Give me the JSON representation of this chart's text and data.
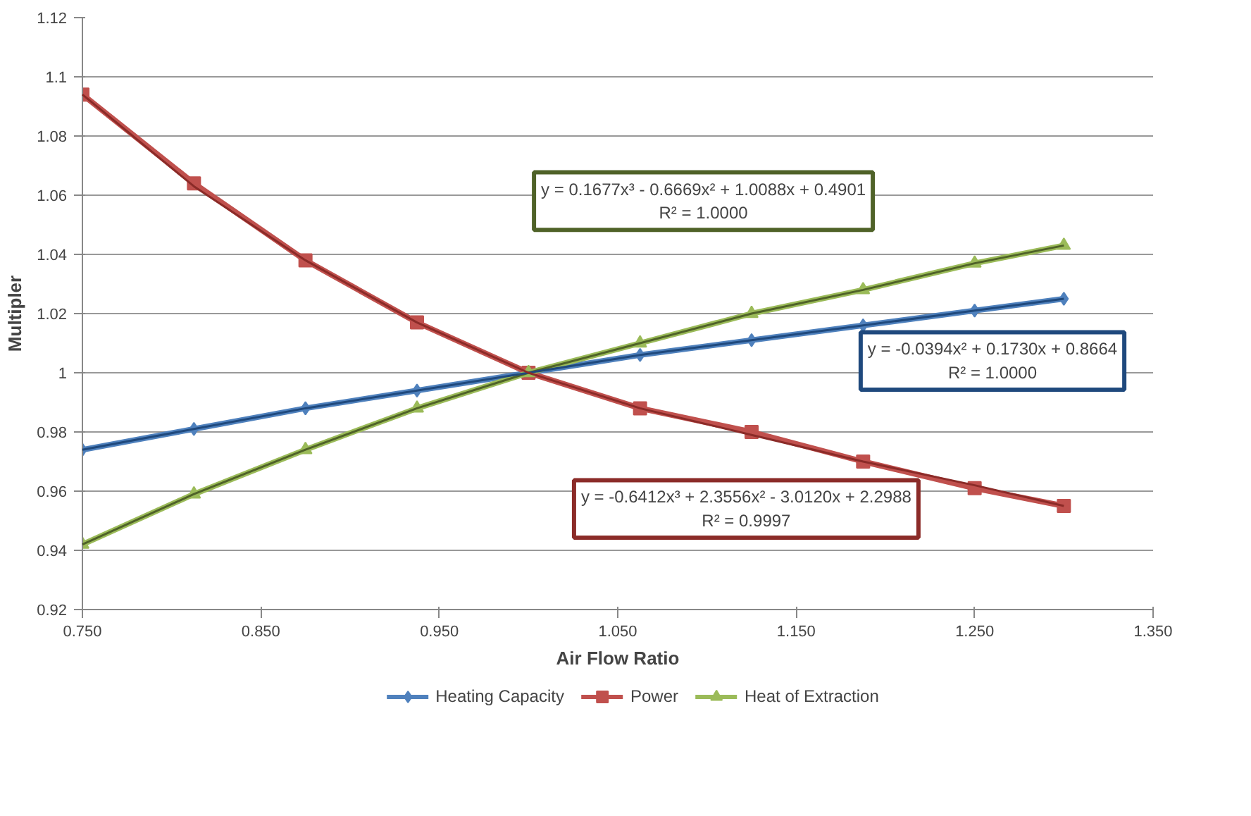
{
  "chart_data": {
    "type": "line",
    "xlabel": "Air Flow Ratio",
    "ylabel": "Multipler",
    "x": [
      0.75,
      0.8125,
      0.875,
      0.9375,
      1.0,
      1.0625,
      1.125,
      1.1875,
      1.25,
      1.3
    ],
    "series": [
      {
        "name": "Heating Capacity",
        "color": "#4f81bd",
        "marker": "diamond",
        "values": [
          0.974,
          0.981,
          0.988,
          0.994,
          1.0,
          1.006,
          1.011,
          1.016,
          1.021,
          1.025
        ]
      },
      {
        "name": "Power",
        "color": "#c0504d",
        "marker": "square",
        "values": [
          1.094,
          1.064,
          1.038,
          1.017,
          1.0,
          0.988,
          0.98,
          0.97,
          0.961,
          0.955
        ]
      },
      {
        "name": "Heat of Extraction",
        "color": "#9bbb59",
        "marker": "triangle",
        "values": [
          0.942,
          0.959,
          0.974,
          0.988,
          1.0,
          1.01,
          1.02,
          1.028,
          1.037,
          1.043
        ]
      },
      {
        "type": "line",
        "color": "#4f6228",
        "values": [
          0.942,
          0.959,
          0.974,
          0.988,
          1.0,
          1.01,
          1.02,
          1.028,
          1.037,
          1.043
        ]
      },
      {
        "type": "line",
        "color": "#1f497d",
        "values": [
          0.974,
          0.981,
          0.988,
          0.994,
          1.0,
          1.006,
          1.011,
          1.016,
          1.021,
          1.025
        ]
      },
      {
        "type": "line",
        "color": "#8b2b28",
        "values": [
          1.094,
          1.063,
          1.038,
          1.017,
          1.0,
          0.988,
          0.979,
          0.97,
          0.962,
          0.955
        ]
      }
    ],
    "annotations": [
      "y = 0.1677x³ - 0.6669x² + 1.0088x + 0.4901\nR² = 1.0000",
      "y = -0.0394x² + 0.1730x + 0.8664\nR² = 1.0000",
      "y = -0.6412x³ + 2.3556x² - 3.0120x + 2.2988\nR² = 0.9997"
    ],
    "xlim": [
      0.75,
      1.35
    ],
    "xticks": [
      {
        "value": 0.75,
        "label": "0.750"
      },
      {
        "value": 0.85,
        "label": "0.850"
      },
      {
        "value": 0.95,
        "label": "0.950"
      },
      {
        "value": 1.05,
        "label": "1.050"
      },
      {
        "value": 1.15,
        "label": "1.150"
      },
      {
        "value": 1.25,
        "label": "1.250"
      },
      {
        "value": 1.35,
        "label": "1.350"
      }
    ],
    "ylim": [
      0.92,
      1.12
    ],
    "yticks": [
      0.92,
      0.94,
      0.96,
      0.98,
      1,
      1.02,
      1.04,
      1.06,
      1.08,
      1.1,
      1.12
    ],
    "grid": "y",
    "legend": "bottom",
    "line_style": "solid"
  }
}
